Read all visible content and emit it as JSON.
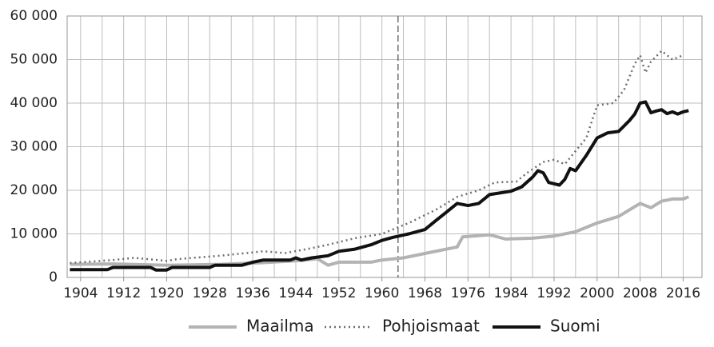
{
  "chart_data": {
    "type": "line",
    "xlim": [
      1901.5,
      2019.5
    ],
    "xticks": [
      1904,
      1912,
      1920,
      1928,
      1936,
      1944,
      1952,
      1960,
      1968,
      1976,
      1984,
      1992,
      2000,
      2008,
      2016
    ],
    "xgridlines": [
      1904,
      1908,
      1912,
      1916,
      1920,
      1924,
      1928,
      1932,
      1936,
      1940,
      1944,
      1948,
      1952,
      1956,
      1960,
      1964,
      1968,
      1972,
      1976,
      1980,
      1984,
      1988,
      1992,
      1996,
      2000,
      2004,
      2008,
      2012,
      2016
    ],
    "ylim": [
      0,
      60000
    ],
    "yticks": [
      {
        "value": 0,
        "label": "0"
      },
      {
        "value": 10000,
        "label": "10 000"
      },
      {
        "value": 20000,
        "label": "20 000"
      },
      {
        "value": 30000,
        "label": "30 000"
      },
      {
        "value": 40000,
        "label": "40 000"
      },
      {
        "value": 50000,
        "label": "50 000"
      },
      {
        "value": 60000,
        "label": "60 000"
      }
    ],
    "grid": true,
    "marker_year": 1963,
    "legend": "bottom",
    "series": [
      {
        "name": "Maailma",
        "color": "#b3b3b3",
        "style": "solid",
        "x": [
          1902,
          1910,
          1920,
          1930,
          1938,
          1945,
          1948,
          1950,
          1952,
          1958,
          1960,
          1964,
          1968,
          1972,
          1974,
          1975,
          1980,
          1983,
          1988,
          1992,
          1996,
          2000,
          2004,
          2008,
          2010,
          2012,
          2014,
          2016,
          2017
        ],
        "values": [
          3000,
          3100,
          2800,
          3000,
          3400,
          3900,
          4300,
          2800,
          3500,
          3500,
          4000,
          4500,
          5500,
          6500,
          7000,
          9300,
          9800,
          8800,
          9000,
          9500,
          10500,
          12500,
          14000,
          17000,
          16000,
          17500,
          18000,
          18000,
          18500
        ]
      },
      {
        "name": "Pohjoismaat",
        "color": "#6d6e71",
        "style": "dotted",
        "x": [
          1902,
          1910,
          1914,
          1920,
          1922,
          1930,
          1938,
          1942,
          1946,
          1950,
          1955,
          1960,
          1965,
          1970,
          1974,
          1978,
          1981,
          1985,
          1987,
          1990,
          1992,
          1994,
          1996,
          1998,
          2000,
          2003,
          2005,
          2007,
          2008,
          2009,
          2010,
          2012,
          2014,
          2016
        ],
        "values": [
          3300,
          4000,
          4500,
          3800,
          4200,
          5000,
          6000,
          5600,
          6500,
          7500,
          9000,
          10000,
          12500,
          15500,
          18500,
          20000,
          21800,
          22000,
          24000,
          26500,
          27000,
          26000,
          29000,
          32000,
          39500,
          40000,
          43000,
          49000,
          51000,
          47000,
          49500,
          52000,
          50000,
          51000
        ]
      },
      {
        "name": "Suomi",
        "color": "#111111",
        "style": "solid",
        "x": [
          1902,
          1909,
          1910,
          1917,
          1918,
          1920,
          1921,
          1928,
          1929,
          1934,
          1936,
          1938,
          1943,
          1944,
          1945,
          1947,
          1950,
          1952,
          1955,
          1958,
          1960,
          1962,
          1965,
          1968,
          1970,
          1972,
          1974,
          1976,
          1978,
          1980,
          1984,
          1986,
          1988,
          1989,
          1990,
          1991,
          1993,
          1994,
          1995,
          1996,
          1998,
          2000,
          2002,
          2004,
          2006,
          2007,
          2008,
          2009,
          2010,
          2011,
          2012,
          2013,
          2014,
          2015,
          2016,
          2017
        ],
        "values": [
          1800,
          1800,
          2300,
          2300,
          1700,
          1700,
          2300,
          2300,
          2800,
          2800,
          3500,
          4000,
          4000,
          4500,
          4000,
          4500,
          5000,
          6000,
          6500,
          7500,
          8500,
          9200,
          10000,
          11000,
          13000,
          15000,
          17000,
          16500,
          17000,
          19000,
          19800,
          20800,
          23000,
          24500,
          24000,
          21800,
          21200,
          22500,
          25000,
          24500,
          28000,
          32000,
          33200,
          33500,
          36000,
          37500,
          40000,
          40300,
          37800,
          38200,
          38500,
          37600,
          38000,
          37500,
          38000,
          38300
        ]
      }
    ]
  }
}
